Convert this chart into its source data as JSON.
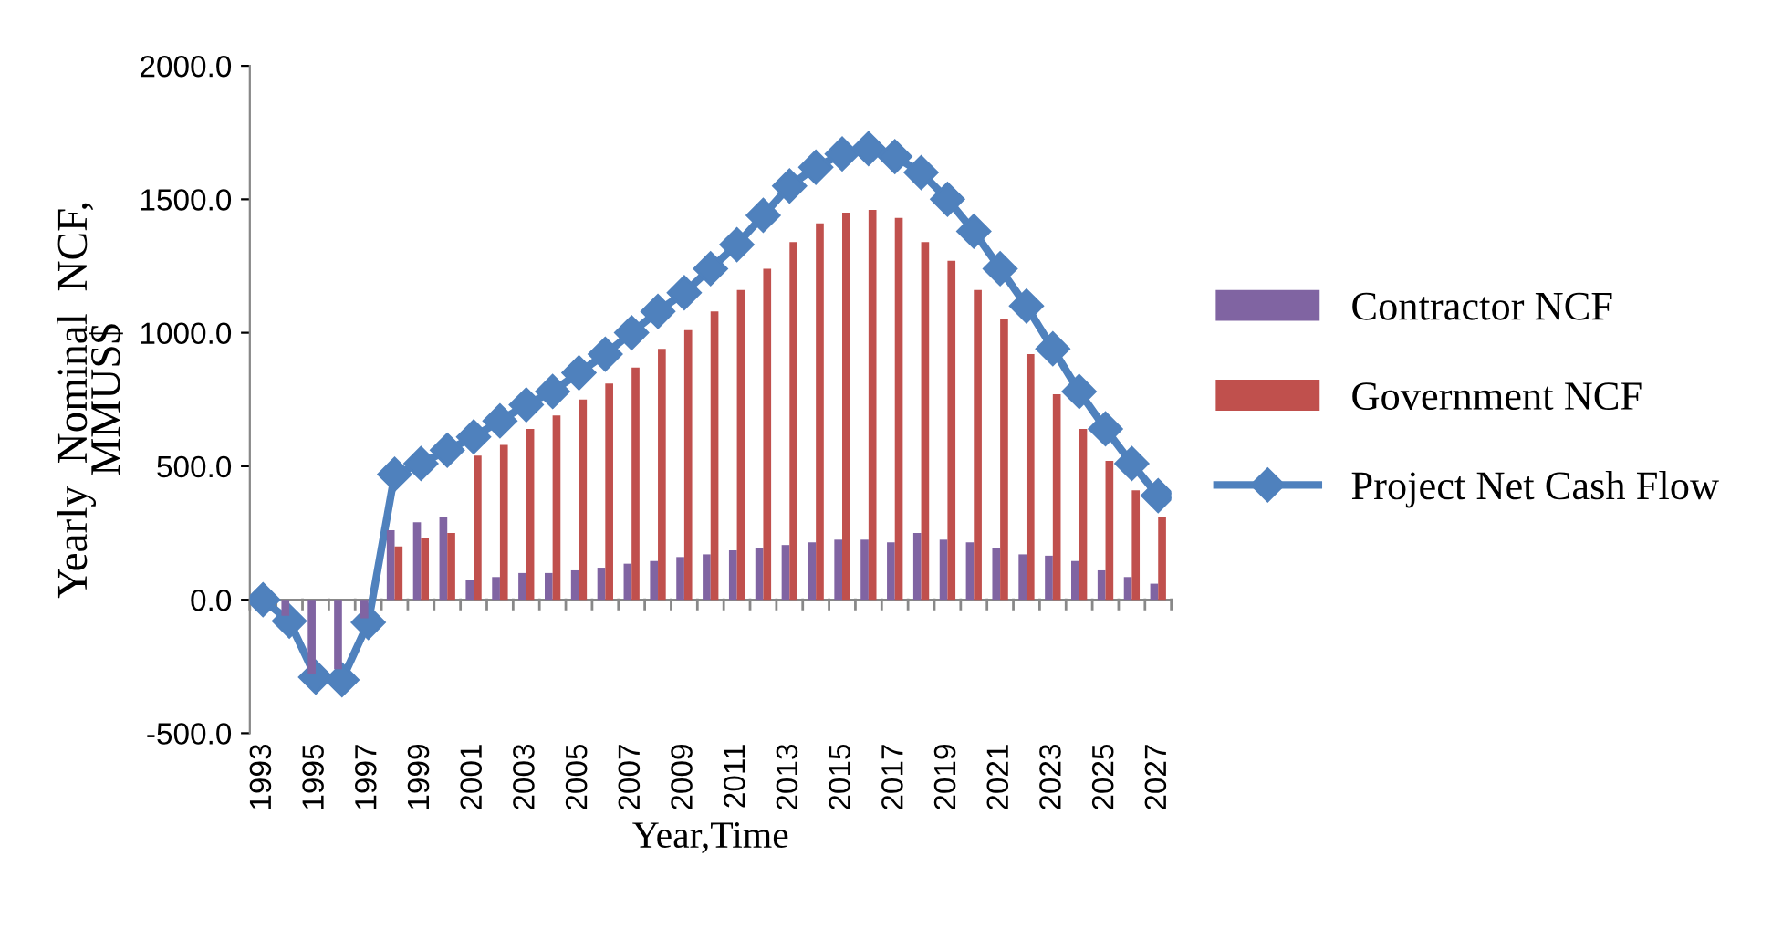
{
  "chart_data": {
    "type": "bar",
    "xlabel": "Year,Time",
    "ylabel": "Yearly  Nominal  NCF,\nMMUS$",
    "categories": [
      "1993",
      null,
      "1995",
      null,
      "1997",
      null,
      "1999",
      null,
      "2001",
      null,
      "2003",
      null,
      "2005",
      null,
      "2007",
      null,
      "2009",
      null,
      "2011",
      null,
      "2013",
      null,
      "2015",
      null,
      "2017",
      null,
      "2019",
      null,
      "2021",
      null,
      "2023",
      null,
      "2025",
      null,
      "2027"
    ],
    "series": [
      {
        "name": "Contractor NCF",
        "color": "#8064a2",
        "values": [
          0,
          -60,
          -280,
          -260,
          -70,
          260,
          290,
          310,
          75,
          85,
          100,
          100,
          110,
          120,
          135,
          145,
          160,
          170,
          185,
          195,
          205,
          215,
          225,
          225,
          215,
          250,
          225,
          215,
          195,
          170,
          165,
          145,
          110,
          85,
          60
        ]
      },
      {
        "name": "Government NCF",
        "color": "#c0504d",
        "values": [
          0,
          0,
          0,
          0,
          0,
          200,
          230,
          250,
          540,
          580,
          640,
          690,
          750,
          810,
          870,
          940,
          1010,
          1080,
          1160,
          1240,
          1340,
          1410,
          1450,
          1460,
          1430,
          1340,
          1270,
          1160,
          1050,
          920,
          770,
          640,
          520,
          410,
          310
        ]
      },
      {
        "name": "Project Net Cash Flow",
        "type": "line",
        "color": "#4f81bd",
        "marker": "diamond",
        "values": [
          0,
          -80,
          -290,
          -300,
          -85,
          470,
          510,
          560,
          610,
          670,
          730,
          780,
          850,
          920,
          1000,
          1080,
          1150,
          1240,
          1330,
          1440,
          1550,
          1620,
          1670,
          1690,
          1660,
          1600,
          1500,
          1380,
          1240,
          1100,
          940,
          780,
          640,
          510,
          390
        ]
      }
    ],
    "ylim": [
      -500,
      2000
    ],
    "yticks": [
      {
        "value": -500,
        "label": "-500.0"
      },
      {
        "value": 0,
        "label": "0.0"
      },
      {
        "value": 500,
        "label": "500.0"
      },
      {
        "value": 1000,
        "label": "1000.0"
      },
      {
        "value": 1500,
        "label": "1500.0"
      },
      {
        "value": 2000,
        "label": "2000.0"
      }
    ],
    "legend": "right"
  }
}
